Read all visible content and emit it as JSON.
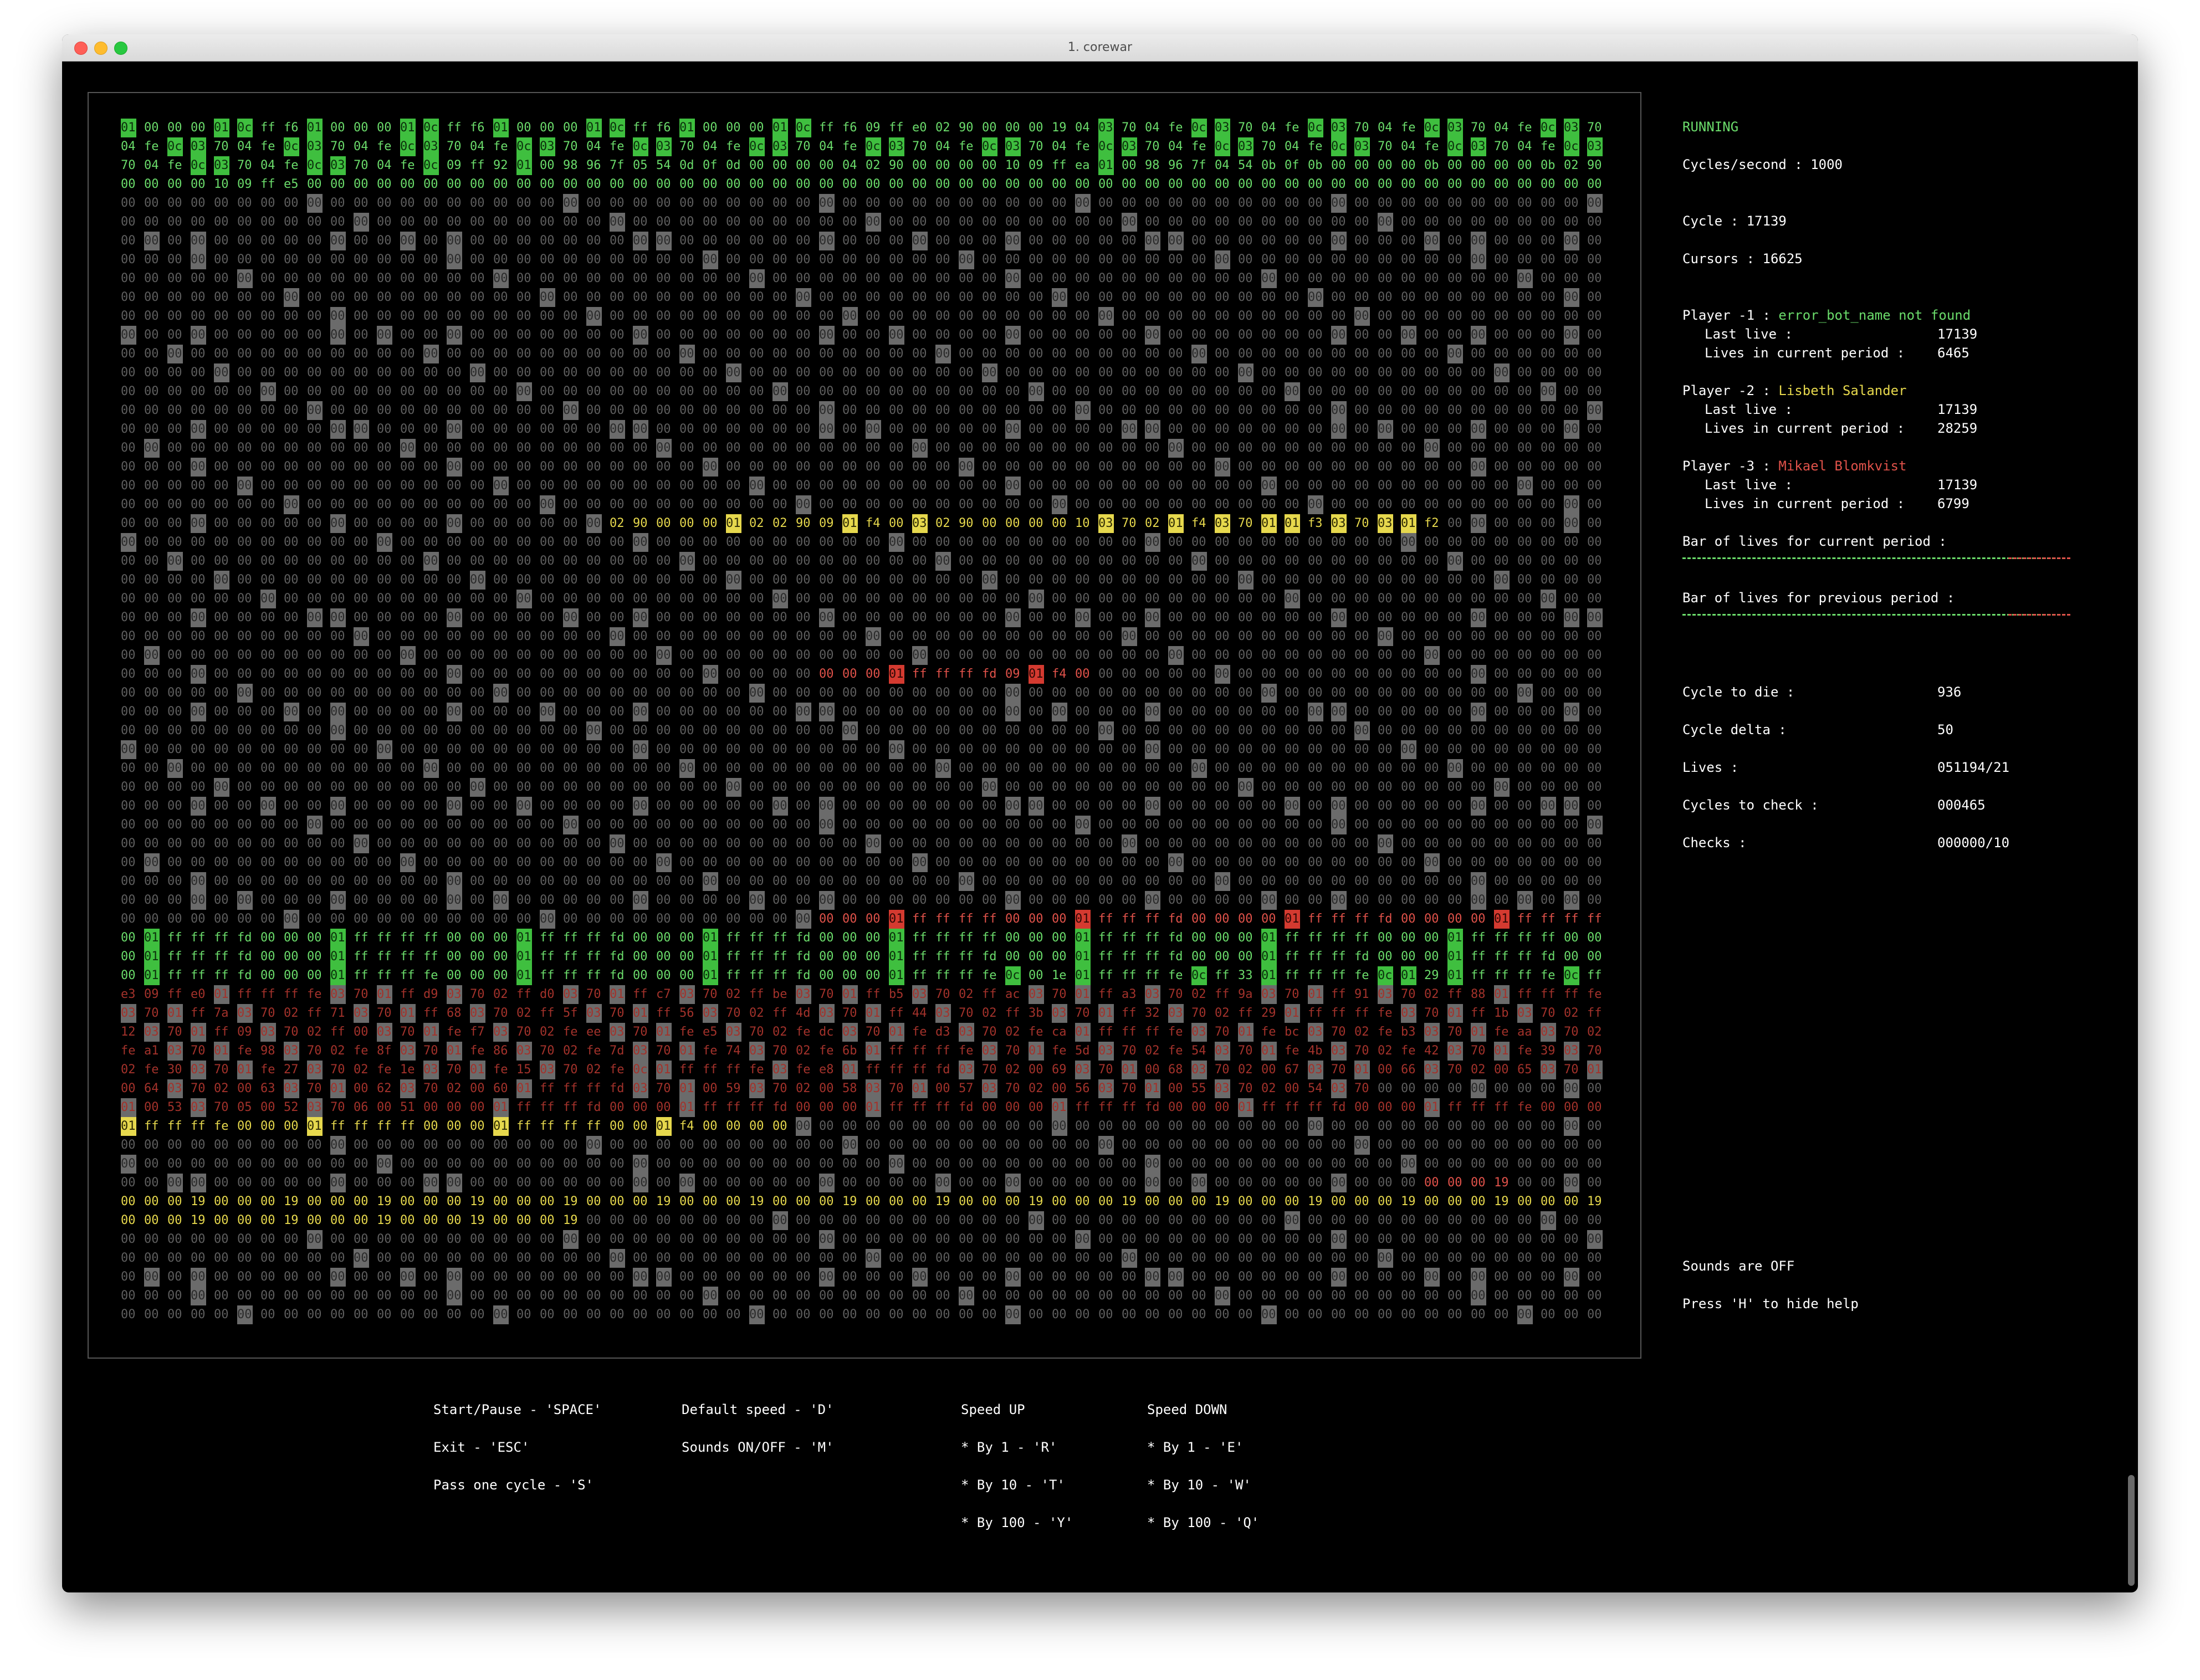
{
  "window": {
    "title": "1. corewar"
  },
  "colors": {
    "player1": "#6bdc6b",
    "player2": "#e6d84d",
    "player3": "#e0524a",
    "empty": "#5e5e5e"
  },
  "arena": {
    "rows": [
      "01 00 00 00 01 0c ff f6 01 00 00 00 01 0c ff f6 01 00 00 00 01 0c ff f6 01 00 00 00 01 0c ff f6 09 ff e0 02 90 00 00 00 19 04 03 70 04 fe 0c 03 70 04 fe 0c 03 70 04 fe 0c 03 70 04 fe 0c 03 70",
      "04 fe 0c 03 70 04 fe 0c 03 70 04 fe 0c 03 70 04 fe 0c 03 70 04 fe 0c 03 70 04 fe 0c 03 70 04 fe 0c 03 70 04 fe 0c 03 70 04 fe 0c 03 70 04 fe 0c 03 70 04 fe 0c 03 70 04 fe 0c 03 70 04 fe 0c 03",
      "70 04 fe 0c 03 70 04 fe 0c 03 70 04 fe 0c 09 ff 92 01 00 98 96 7f 05 54 0d 0f 0d 00 00 00 00 04 02 90 00 00 00 00 10 09 ff ea 01 00 98 96 7f 04 54 0b 0f 0b 00 00 00 00 0b 00 00 00 00 0b 02 90",
      "00 00 00 00 10 09 ff e5 00 00 00 00 00 00 00 00 00 00 00 00 00 00 00 00 00 00 00 00 00 00 00 00 00 00 00 00 00 00 00 00 00 00 00 00 00 00 00 00 00 00 00 00 00 00 00 00 00 00 00 00 00 00 00 00",
      "02 90 00 00 00 01 02 02 90 09 01 f4 00 03 02 90 00 00 00 00 10 03 70 02 01 f4 03 70 01 01 f3 03 70 03 01 f2",
      "00 00 00 01 ff ff ff fd 09 01 f4 00",
      "00 00 00 01 ff ff ff ff 00 00 00 01 ff ff ff fd 00 00 00 00 01 ff ff ff fd 00 00 00 00 01 ff ff ff ff 00 00",
      "00 01 ff ff ff fd 00 00 00 01 ff ff ff ff 00 00 00 01 ff ff ff fd 00 00 00 01 ff ff ff fd 00 00 00 01 ff ff ff ff 00 00 00 01 ff ff ff fd 00 00 00 01 ff ff ff ff 00 00 00 01 ff ff ff ff 00 00",
      "00 01 ff ff ff fd 00 00 00 01 ff ff ff ff 00 00 00 01 ff ff ff fd 00 00 00 01 ff ff ff fd 00 00 00 01 ff ff ff fd 00 00 00 01 ff ff ff fd 00 00 00 01 ff ff ff fd 00 00 00 01 ff ff ff fd 00 00",
      "00 01 ff ff ff fd 00 00 00 01 ff ff ff fe 00 00 00 01 ff ff ff fd 00 00 00 01 ff ff ff fd 00 00 00 01 ff ff ff fe 0c 00 1e 01 ff ff ff fe 0c ff 33 01 ff ff ff fe 0c 01 29 01 ff ff ff fe 0c ff",
      "e3 09 ff e0 01 ff ff ff fe 03 70 01 ff d9 03 70 02 ff d0 03 70 01 ff c7 03 70 02 ff be 03 70 01 ff b5 03 70 02 ff ac 03 70 01 ff a3 03 70 02 ff 9a 03 70 01 ff 91 03 70 02 ff 88 01 ff ff ff fe",
      "03 70 01 ff 7a 03 70 02 ff 71 03 70 01 ff 68 03 70 02 ff 5f 03 70 01 ff 56 03 70 02 ff 4d 03 70 01 ff 44 03 70 02 ff 3b 03 70 01 ff 32 03 70 02 ff 29 01 ff ff ff fe 03 70 01 ff 1b 03 70 02 ff",
      "12 03 70 01 ff 09 03 70 02 ff 00 03 70 01 fe f7 03 70 02 fe ee 03 70 01 fe e5 03 70 02 fe dc 03 70 01 fe d3 03 70 02 fe ca 01 ff ff ff fe 03 70 01 fe bc 03 70 02 fe b3 03 70 01 fe aa 03 70 02",
      "fe a1 03 70 01 fe 98 03 70 02 fe 8f 03 70 01 fe 86 03 70 02 fe 7d 03 70 01 fe 74 03 70 02 fe 6b 01 ff ff ff fe 03 70 01 fe 5d 03 70 02 fe 54 03 70 01 fe 4b 03 70 02 fe 42 03 70 01 fe 39 03 70",
      "02 fe 30 03 70 01 fe 27 03 70 02 fe 1e 03 70 01 fe 15 03 70 02 fe 0c 01 ff ff ff fe 03 fe e8 01 ff ff ff fd 03 70 02 00 69 03 70 01 00 68 03 70 02 00 67 03 70 01 00 66 03 70 02 00 65 03 70 01",
      "00 64 03 70 02 00 63 03 70 01 00 62 03 70 02 00 60 01 ff ff ff fd 03 70 01 00 59 03 70 02 00 58 03 70 01 00 57 03 70 02 00 56 03 70 01 00 55 03 70 02 00 54 03 70",
      "01 00 53 03 70 05 00 52 03 70 06 00 51 00 00 00 01 ff ff ff fd 00 00 00 01 ff ff ff fd 00 00 00 01 ff ff ff fd 00 00 00 01 ff ff ff fd 00 00 00 01 ff ff ff fd 00 00 00 01 ff ff ff fe 00 00 00",
      "01 ff ff ff fe 00 00 00 01 ff ff ff ff 00 00 00 01 ff ff ff ff 00 00 01 f4 00 00 00 00",
      "00 00 00 19",
      "00 00 00 19 00 00 00 19 00 00 00 19 00 00 00 19 00 00 00 19 00 00 00 19 00 00 00 19 00 00 00 19 00 00 00 19 00 00 00 19 00 00 00 19 00 00 00 19 00 00 00 19 00 00 00 19 00 00 00 19 00 00 00 19",
      "00 00 00 19 00 00 00 19 00 00 00 19 00 00 00 19 00 00 00 19"
    ]
  },
  "status": {
    "state": "RUNNING",
    "cycles_per_second": "Cycles/second : 1000",
    "cycle": "Cycle : 17139",
    "cursors": "Cursors : 16625"
  },
  "players": [
    {
      "label": "Player -1 : ",
      "name": "error_bot_name not found",
      "last_live_label": "Last live :",
      "last_live": "17139",
      "lives_label": "Lives in current period :",
      "lives": "6465"
    },
    {
      "label": "Player -2 : ",
      "name": "Lisbeth Salander",
      "last_live_label": "Last live :",
      "last_live": "17139",
      "lives_label": "Lives in current period :",
      "lives": "28259"
    },
    {
      "label": "Player -3 : ",
      "name": "Mikael Blomkvist",
      "last_live_label": "Last live :",
      "last_live": "17139",
      "lives_label": "Lives in current period :",
      "lives": "6799"
    }
  ],
  "bars": {
    "current_label": "Bar of lives for current period :",
    "previous_label": "Bar of lives for previous period :",
    "current_green_fraction": 0.84,
    "previous_green_fraction": 0.84
  },
  "stats": [
    {
      "label": "Cycle to die :",
      "value": "936"
    },
    {
      "label": "Cycle delta :",
      "value": "50"
    },
    {
      "label": "Lives :",
      "value": "051194/21"
    },
    {
      "label": "Cycles to check :",
      "value": "000465"
    },
    {
      "label": "Checks :",
      "value": "000000/10"
    }
  ],
  "footer_info": {
    "sounds": "Sounds are OFF",
    "help_toggle": "Press 'H' to hide help"
  },
  "help": {
    "col1": [
      "Start/Pause - 'SPACE'",
      "Exit - 'ESC'",
      "Pass one cycle - 'S'"
    ],
    "col2": [
      "Default speed - 'D'",
      "Sounds ON/OFF - 'M'"
    ],
    "col3": [
      "Speed UP",
      "* By 1 - 'R'",
      "* By 10 - 'T'",
      "* By 100 - 'Y'"
    ],
    "col4": [
      "Speed DOWN",
      "* By 1 - 'E'",
      "* By 10 - 'W'",
      "* By 100 - 'Q'"
    ]
  }
}
